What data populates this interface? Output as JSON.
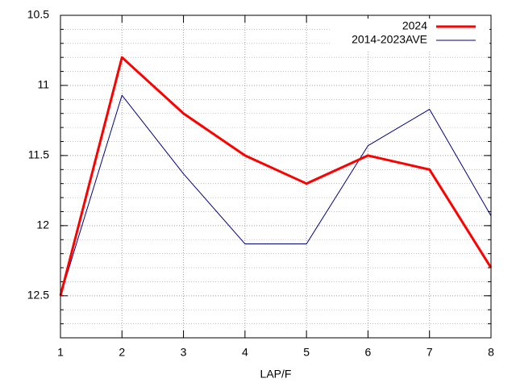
{
  "chart_data": {
    "type": "line",
    "x_label": "LAP/F",
    "x": [
      1,
      2,
      3,
      4,
      5,
      6,
      7,
      8
    ],
    "series": [
      {
        "name": "2024",
        "color": "#ff0000",
        "width": 3,
        "values": [
          12.5,
          10.8,
          11.2,
          11.5,
          11.7,
          11.5,
          11.6,
          12.3
        ]
      },
      {
        "name": "2014-2023AVE",
        "color": "#000080",
        "width": 1,
        "values": [
          12.5,
          11.07,
          11.63,
          12.13,
          12.13,
          11.43,
          11.17,
          11.93
        ]
      }
    ],
    "xlim": [
      1,
      8
    ],
    "xticks": [
      1,
      2,
      3,
      4,
      5,
      6,
      7,
      8
    ],
    "ylim": [
      10.5,
      12.8
    ],
    "y_reversed": true,
    "yticks": [
      10.5,
      11,
      11.5,
      12,
      12.5
    ],
    "y_minor_step": 0.1,
    "grid": true,
    "legend": "top-right"
  }
}
